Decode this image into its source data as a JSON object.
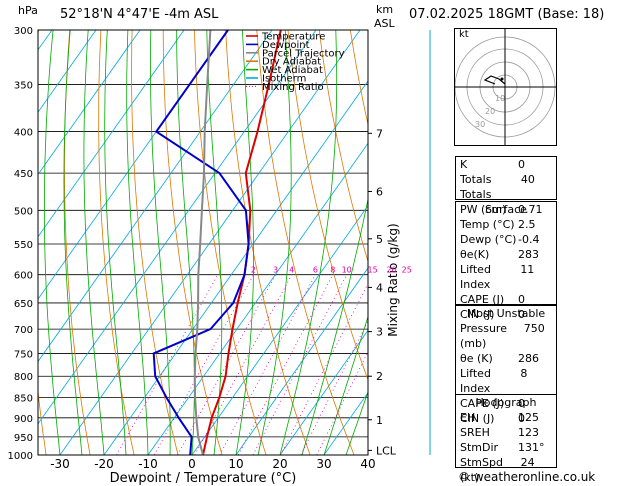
{
  "header": {
    "pressure_unit": "hPa",
    "location": "52°18'N  4°47'E  -4m  ASL",
    "km_unit_1": "km",
    "km_unit_2": "ASL",
    "datetime": "07.02.2025  18GMT  (Base: 18)"
  },
  "legend": [
    {
      "label": "Temperature",
      "color": "#dd0000",
      "style": "solid"
    },
    {
      "label": "Dewpoint",
      "color": "#0000cc",
      "style": "solid"
    },
    {
      "label": "Parcel Trajectory",
      "color": "#888888",
      "style": "solid"
    },
    {
      "label": "Dry Adiabat",
      "color": "#dd7700",
      "style": "solid"
    },
    {
      "label": "Wet Adiabat",
      "color": "#00aa00",
      "style": "solid"
    },
    {
      "label": "Isotherm",
      "color": "#00aadd",
      "style": "solid"
    },
    {
      "label": "Mixing Ratio",
      "color": "#dd00aa",
      "style": "dotted"
    }
  ],
  "axes": {
    "xlabel": "Dewpoint  /  Temperature  (°C)",
    "ylabel_right": "Mixing Ratio  (g/kg)",
    "x_ticks": [
      "-30",
      "-20",
      "-10",
      "0",
      "10",
      "20",
      "30",
      "40"
    ],
    "pressure_labels": [
      "300",
      "350",
      "400",
      "450",
      "500",
      "550",
      "600",
      "650",
      "700",
      "750",
      "800",
      "850",
      "900",
      "950",
      "1000"
    ],
    "km_labels": [
      {
        "p": 402,
        "label": "7"
      },
      {
        "p": 474,
        "label": "6"
      },
      {
        "p": 542,
        "label": "5"
      },
      {
        "p": 622,
        "label": "4"
      },
      {
        "p": 705,
        "label": "3"
      },
      {
        "p": 800,
        "label": "2"
      },
      {
        "p": 905,
        "label": "1"
      },
      {
        "p": 987,
        "label": "LCL"
      }
    ],
    "mixing_ratio_labels": [
      "2",
      "3",
      "4",
      "6",
      "8",
      "10",
      "15",
      "20",
      "25"
    ]
  },
  "chart_data": {
    "type": "line",
    "title": "",
    "xlabel": "Dewpoint / Temperature (°C)",
    "ylabel": "hPa",
    "xlim": [
      -35,
      40
    ],
    "ylim": [
      1000,
      300
    ],
    "y_scale": "log",
    "series": [
      {
        "name": "Temperature",
        "points": [
          [
            1000,
            2.5
          ],
          [
            950,
            0.5
          ],
          [
            900,
            -1.5
          ],
          [
            850,
            -3
          ],
          [
            800,
            -5
          ],
          [
            750,
            -8
          ],
          [
            700,
            -11
          ],
          [
            650,
            -14
          ],
          [
            600,
            -17
          ],
          [
            550,
            -21
          ],
          [
            500,
            -26
          ],
          [
            450,
            -33
          ],
          [
            400,
            -37
          ],
          [
            350,
            -42
          ],
          [
            300,
            -48
          ]
        ]
      },
      {
        "name": "Dewpoint",
        "points": [
          [
            1000,
            -0.4
          ],
          [
            950,
            -3
          ],
          [
            900,
            -9
          ],
          [
            850,
            -15
          ],
          [
            800,
            -21
          ],
          [
            750,
            -25
          ],
          [
            700,
            -16
          ],
          [
            650,
            -15
          ],
          [
            600,
            -17
          ],
          [
            550,
            -21
          ],
          [
            500,
            -27
          ],
          [
            450,
            -39
          ],
          [
            400,
            -60
          ],
          [
            350,
            -60
          ],
          [
            300,
            -60
          ]
        ]
      },
      {
        "name": "Parcel Trajectory",
        "points": [
          [
            1000,
            2.5
          ],
          [
            950,
            -1.5
          ],
          [
            900,
            -5
          ],
          [
            850,
            -8.5
          ],
          [
            800,
            -12
          ],
          [
            750,
            -15.5
          ],
          [
            700,
            -19
          ],
          [
            650,
            -23
          ],
          [
            600,
            -27.5
          ],
          [
            550,
            -32
          ],
          [
            500,
            -37
          ],
          [
            450,
            -42.5
          ],
          [
            400,
            -49
          ],
          [
            350,
            -56
          ],
          [
            300,
            -64
          ]
        ]
      }
    ]
  },
  "hodograph": {
    "label": "kt",
    "ring_labels": [
      "10",
      "20",
      "30"
    ]
  },
  "indices": [
    {
      "label": "K",
      "value": "0"
    },
    {
      "label": "Totals Totals",
      "value": "40"
    },
    {
      "label": "PW (cm)",
      "value": "0.71"
    }
  ],
  "surface": {
    "title": "Surface",
    "rows": [
      {
        "label": "Temp (°C)",
        "value": "2.5"
      },
      {
        "label": "Dewp (°C)",
        "value": "-0.4"
      },
      {
        "label": "θe(K)",
        "value": "283"
      },
      {
        "label": "Lifted Index",
        "value": "11"
      },
      {
        "label": "CAPE (J)",
        "value": "0"
      },
      {
        "label": "CIN (J)",
        "value": "0"
      }
    ]
  },
  "most_unstable": {
    "title": "Most Unstable",
    "rows": [
      {
        "label": "Pressure (mb)",
        "value": "750"
      },
      {
        "label": "θe (K)",
        "value": "286"
      },
      {
        "label": "Lifted Index",
        "value": "8"
      },
      {
        "label": "CAPE (J)",
        "value": "0"
      },
      {
        "label": "CIN (J)",
        "value": "0"
      }
    ]
  },
  "hodograph_table": {
    "title": "Hodograph",
    "rows": [
      {
        "label": "EH",
        "value": "125"
      },
      {
        "label": "SREH",
        "value": "123"
      },
      {
        "label": "StmDir",
        "value": "131°"
      },
      {
        "label": "StmSpd (kt)",
        "value": "24"
      }
    ]
  },
  "footer": "© weatheronline.co.uk"
}
